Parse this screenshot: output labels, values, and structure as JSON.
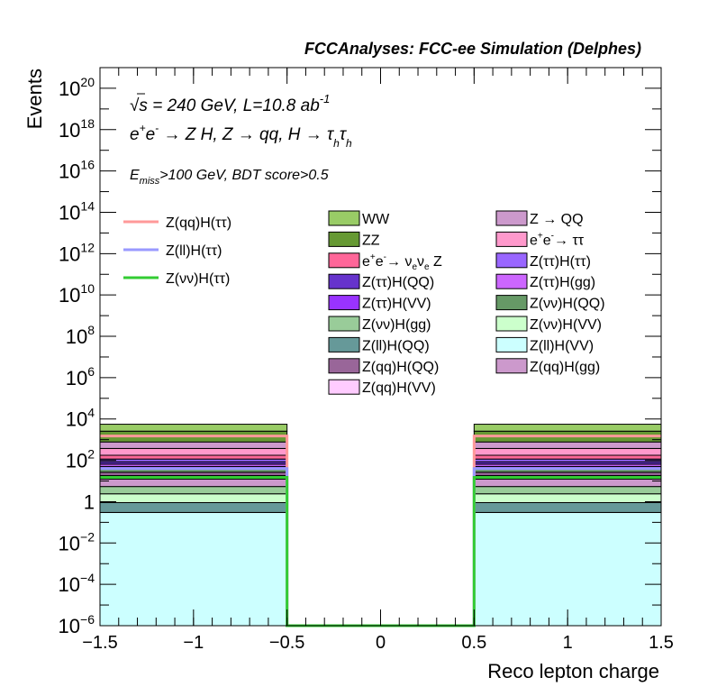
{
  "chart_data": {
    "type": "bar",
    "title": "FCCAnalyses: FCC-ee Simulation (Delphes)",
    "xlabel": "Reco lepton charge",
    "ylabel": "Events",
    "xlim": [
      -1.5,
      1.5
    ],
    "ylim": [
      1e-06,
      1e+21
    ],
    "log_y": true,
    "x_ticks": [
      "−1.5",
      "−1",
      "−0.5",
      "0",
      "0.5",
      "1",
      "1.5"
    ],
    "x_tick_values": [
      -1.5,
      -1,
      -0.5,
      0,
      0.5,
      1,
      1.5
    ],
    "y_ticks": [
      {
        "value": 1e+20,
        "base": "10",
        "exp": "20"
      },
      {
        "value": 1e+18,
        "base": "10",
        "exp": "18"
      },
      {
        "value": 1e+16,
        "base": "10",
        "exp": "16"
      },
      {
        "value": 100000000000000.0,
        "base": "10",
        "exp": "14"
      },
      {
        "value": 1000000000000.0,
        "base": "10",
        "exp": "12"
      },
      {
        "value": 10000000000.0,
        "base": "10",
        "exp": "10"
      },
      {
        "value": 100000000.0,
        "base": "10",
        "exp": "8"
      },
      {
        "value": 1000000.0,
        "base": "10",
        "exp": "6"
      },
      {
        "value": 10000.0,
        "base": "10",
        "exp": "4"
      },
      {
        "value": 100.0,
        "base": "10",
        "exp": "2"
      },
      {
        "value": 1,
        "base": "1",
        "exp": ""
      },
      {
        "value": 0.01,
        "base": "10",
        "exp": "−2"
      },
      {
        "value": 0.0001,
        "base": "10",
        "exp": "−4"
      },
      {
        "value": 1e-06,
        "base": "10",
        "exp": "−6"
      }
    ],
    "annotations": {
      "line1": {
        "sqrt": "√s",
        "text": " = 240 GeV, L=10.8 ab",
        "sup": "-1"
      },
      "line2": {
        "parts": [
          "e",
          "+",
          "e",
          "-",
          " → Z H, Z  → qq, H  → τ",
          "h",
          "τ",
          "h"
        ]
      },
      "line3": {
        "parts": [
          "E",
          "miss",
          ">100 GeV, BDT score>0.5"
        ]
      }
    },
    "bins": [
      [
        -1.5,
        -0.5
      ],
      [
        -0.5,
        0.5
      ],
      [
        0.5,
        1.5
      ]
    ],
    "stack_bottom_to_top": [
      {
        "name": "Z(ll)H(VV)",
        "color": "#ccffff",
        "values": [
          0.3,
          0,
          0.3
        ]
      },
      {
        "name": "Z(ll)H(QQ)",
        "color": "#669999",
        "values": [
          0.6,
          0,
          0.6
        ]
      },
      {
        "name": "Z(νν)H(VV)",
        "color": "#ccffcc",
        "values": [
          1.5,
          0,
          1.5
        ]
      },
      {
        "name": "Z(νν)H(gg)",
        "color": "#99cc99",
        "values": [
          3,
          0,
          3
        ]
      },
      {
        "name": "Z(qq)H(gg)",
        "color": "#cc99cc",
        "values": [
          7,
          0,
          7
        ]
      },
      {
        "name": "Z(qq)H(VV)",
        "color": "#ffccff",
        "values": [
          6,
          0,
          6
        ]
      },
      {
        "name": "Z(qq)H(QQ)",
        "color": "#996699",
        "values": [
          8,
          0,
          8
        ]
      },
      {
        "name": "Z(νν)H(QQ)",
        "color": "#669966",
        "values": [
          12,
          0,
          12
        ]
      },
      {
        "name": "Z(ττ)H(VV)",
        "color": "#9933ff",
        "values": [
          12,
          0,
          12
        ]
      },
      {
        "name": "Z(ττ)H(gg)",
        "color": "#cc66ff",
        "values": [
          15,
          0,
          15
        ]
      },
      {
        "name": "Z(ττ)H(QQ)",
        "color": "#6633cc",
        "values": [
          20,
          0,
          20
        ]
      },
      {
        "name": "Z(ττ)H(ττ)",
        "color": "#9966ff",
        "values": [
          30,
          0,
          30
        ]
      },
      {
        "name": "e⁺e⁻→ νeνe Z",
        "color": "#ff6699",
        "values": [
          60,
          0,
          60
        ]
      },
      {
        "name": "e⁺e⁻→ ττ",
        "color": "#ff99cc",
        "values": [
          200,
          0,
          200
        ]
      },
      {
        "name": "Z → QQ",
        "color": "#cc99cc",
        "values": [
          400,
          0,
          400
        ]
      },
      {
        "name": "ZZ",
        "color": "#669933",
        "values": [
          1800,
          0,
          1800
        ]
      },
      {
        "name": "WW",
        "color": "#99cc66",
        "values": [
          3000,
          0,
          3000
        ]
      }
    ],
    "signal_lines": [
      {
        "name": "Z(qq)H(ττ)",
        "color": "#ff9999",
        "values": [
          1500,
          1e-06,
          1500
        ]
      },
      {
        "name": "Z(ll)H(ττ)",
        "color": "#9999ff",
        "values": [
          40,
          1e-06,
          40
        ]
      },
      {
        "name": "Z(νν)H(ττ)",
        "color": "#33cc33",
        "values": [
          15,
          1e-06,
          15
        ]
      }
    ],
    "legend": {
      "placement": "top-right",
      "signal_entries": [
        {
          "label": "Z(qq)H(ττ)",
          "color": "#ff9999"
        },
        {
          "label": "Z(ll)H(ττ)",
          "color": "#9999ff"
        },
        {
          "label": "Z(νν)H(ττ)",
          "color": "#33cc33"
        }
      ],
      "column1": [
        {
          "label": "WW",
          "color": "#99cc66"
        },
        {
          "label": "ZZ",
          "color": "#669933"
        },
        {
          "label": "e+e-→ νeνe Z",
          "color": "#ff6699",
          "rich": "nunu"
        },
        {
          "label": "Z(ττ)H(QQ)",
          "color": "#6633cc"
        },
        {
          "label": "Z(ττ)H(VV)",
          "color": "#9933ff"
        },
        {
          "label": "Z(νν)H(gg)",
          "color": "#99cc99"
        },
        {
          "label": "Z(ll)H(QQ)",
          "color": "#669999"
        },
        {
          "label": "Z(qq)H(QQ)",
          "color": "#996699"
        },
        {
          "label": "Z(qq)H(VV)",
          "color": "#ffccff"
        }
      ],
      "column2": [
        {
          "label": "Z → QQ",
          "color": "#cc99cc"
        },
        {
          "label": "e+e-→ ττ",
          "color": "#ff99cc",
          "rich": "tautau"
        },
        {
          "label": "Z(ττ)H(ττ)",
          "color": "#9966ff"
        },
        {
          "label": "Z(ττ)H(gg)",
          "color": "#cc66ff"
        },
        {
          "label": "Z(νν)H(QQ)",
          "color": "#669966"
        },
        {
          "label": "Z(νν)H(VV)",
          "color": "#ccffcc"
        },
        {
          "label": "Z(ll)H(VV)",
          "color": "#ccffff"
        },
        {
          "label": "Z(qq)H(gg)",
          "color": "#cc99cc"
        }
      ]
    }
  }
}
